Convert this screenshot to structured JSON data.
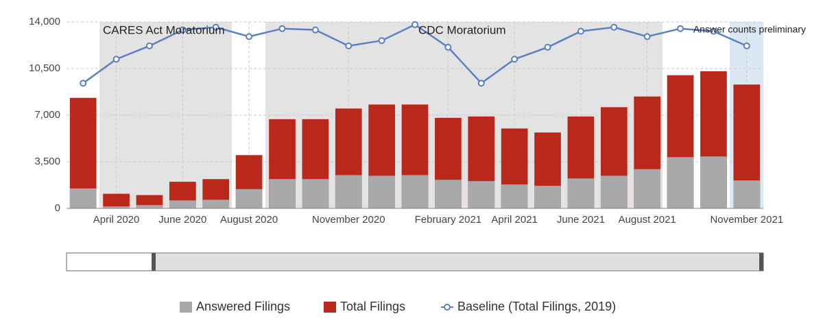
{
  "chart_data": {
    "type": "bar",
    "categories": [
      null,
      "April 2020",
      null,
      "June 2020",
      null,
      "August 2020",
      null,
      null,
      "November 2020",
      null,
      null,
      "February 2021",
      null,
      "April 2021",
      null,
      "June 2021",
      null,
      "August 2021",
      null,
      null,
      "November 2021"
    ],
    "series": [
      {
        "name": "Total Filings",
        "color": "#b9281a",
        "type": "bar",
        "values": [
          8300,
          1100,
          1000,
          2000,
          2200,
          4000,
          6700,
          6700,
          7500,
          7800,
          7800,
          6800,
          6900,
          6000,
          5700,
          6900,
          7600,
          8400,
          10000,
          10300,
          9300
        ]
      },
      {
        "name": "Answered Filings",
        "color": "#a9a9a9",
        "type": "bar",
        "values": [
          1500,
          150,
          250,
          600,
          650,
          1450,
          2200,
          2200,
          2500,
          2450,
          2500,
          2150,
          2050,
          1800,
          1700,
          2250,
          2450,
          2950,
          3850,
          3900,
          2100
        ]
      },
      {
        "name": "Baseline (Total Filings, 2019)",
        "color": "#5b7fbf",
        "type": "line",
        "values": [
          9400,
          11200,
          12200,
          13400,
          13600,
          12900,
          13500,
          13400,
          12200,
          12600,
          13800,
          12100,
          9400,
          11200,
          12100,
          13300,
          13600,
          12900,
          13500,
          13300,
          12200
        ]
      }
    ],
    "annotations": [
      "CARES Act Moratorium",
      "CDC Moratorium",
      "Answer counts preliminary"
    ],
    "ylim": [
      0,
      14000
    ],
    "yticks": [
      0,
      {
        "value": 3500,
        "label": "3,500"
      },
      {
        "value": 7000,
        "label": "7,000"
      },
      {
        "value": 10500,
        "label": "10,500"
      },
      {
        "value": 14000,
        "label": "14,000"
      }
    ],
    "grid": true,
    "legend": "bottom"
  }
}
